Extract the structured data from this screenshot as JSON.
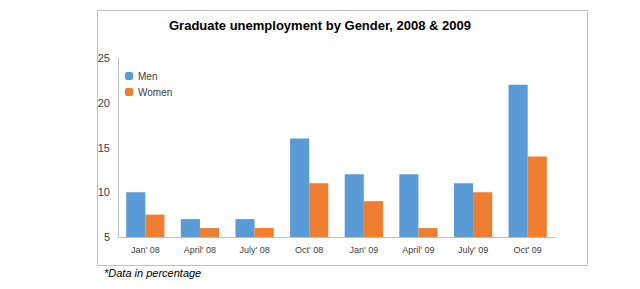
{
  "chart_data": {
    "type": "bar",
    "title": "Graduate unemployment by Gender, 2008 & 2009",
    "annotation": "*Data in percentage",
    "categories": [
      "Jan' 08",
      "April' 08",
      "July' 08",
      "Oct' 08",
      "Jan' 09",
      "April' 09",
      "July' 09",
      "Oct' 09"
    ],
    "series": [
      {
        "name": "Men",
        "color": "#5b9bd5",
        "values": [
          10,
          7,
          7,
          16,
          12,
          12,
          11,
          22
        ]
      },
      {
        "name": "Women",
        "color": "#ed7d31",
        "values": [
          7.5,
          6,
          6,
          11,
          9,
          6,
          10,
          14
        ]
      }
    ],
    "ylim": [
      5,
      25
    ],
    "yticks": [
      5,
      10,
      15,
      20,
      25
    ],
    "grid": false,
    "legend": "upper left"
  }
}
